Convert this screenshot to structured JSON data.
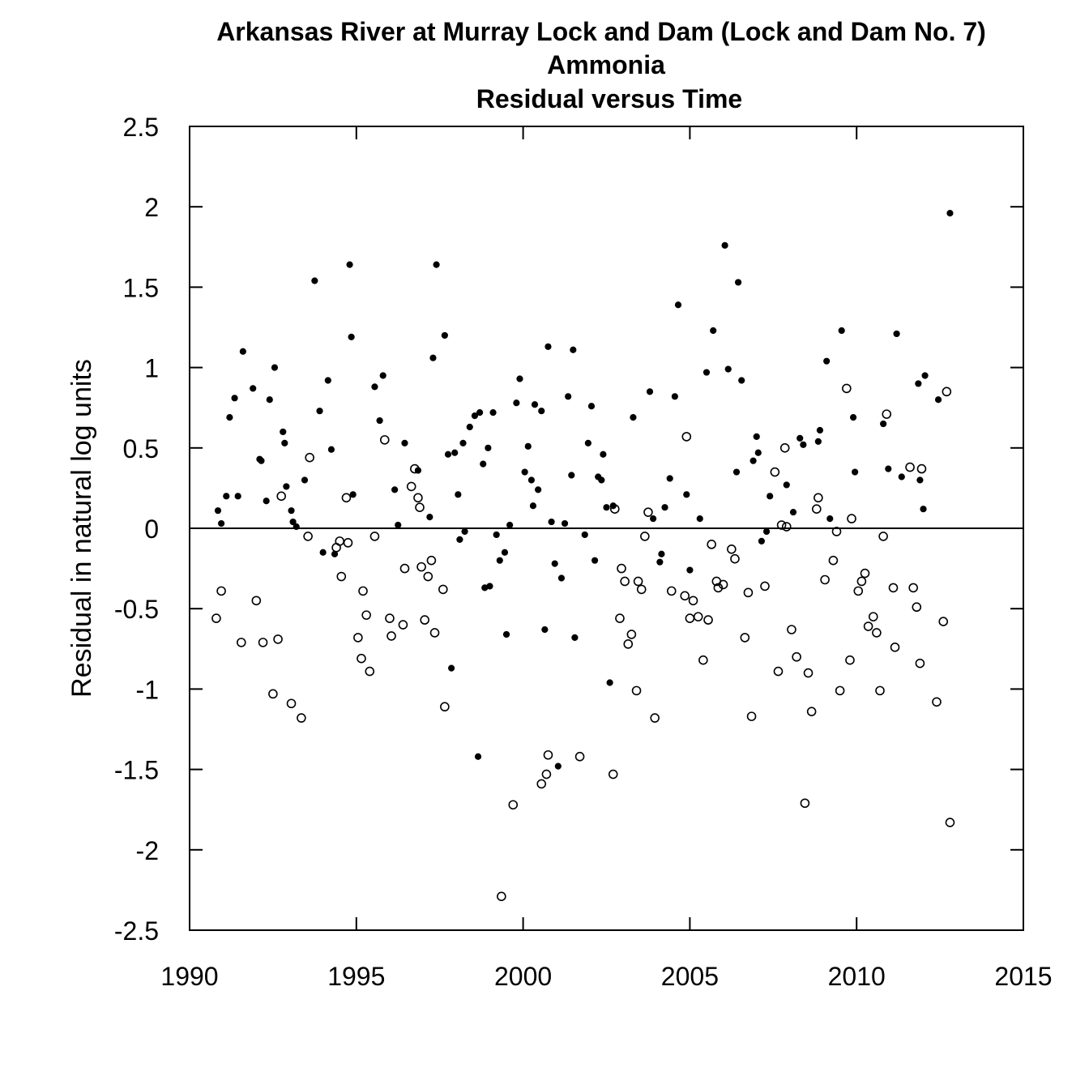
{
  "chart_data": {
    "type": "scatter",
    "title": [
      "Arkansas River at Murray Lock and Dam (Lock and Dam No. 7)",
      "Ammonia",
      "Residual versus Time"
    ],
    "xlabel": "",
    "ylabel": "Residual in natural log units",
    "xlim": [
      1990,
      2015
    ],
    "ylim": [
      -2.5,
      2.5
    ],
    "x_ticks": [
      "1990",
      "1995",
      "2000",
      "2005",
      "2010",
      "2015"
    ],
    "y_ticks": [
      "2.5",
      "2",
      "1.5",
      "1",
      "0.5",
      "0",
      "-0.5",
      "-1",
      "-1.5",
      "-2",
      "-2.5"
    ],
    "reference_line": 0,
    "series": [
      {
        "marker": "filled-circle",
        "points": [
          [
            1990.85,
            0.11
          ],
          [
            1990.95,
            0.03
          ],
          [
            1991.1,
            0.2
          ],
          [
            1991.2,
            0.69
          ],
          [
            1991.35,
            0.81
          ],
          [
            1991.45,
            0.2
          ],
          [
            1991.6,
            1.1
          ],
          [
            1991.9,
            0.87
          ],
          [
            1992.1,
            0.43
          ],
          [
            1992.15,
            0.42
          ],
          [
            1992.3,
            0.17
          ],
          [
            1992.4,
            0.8
          ],
          [
            1992.55,
            1.0
          ],
          [
            1992.8,
            0.6
          ],
          [
            1992.85,
            0.53
          ],
          [
            1992.9,
            0.26
          ],
          [
            1993.05,
            0.11
          ],
          [
            1993.1,
            0.04
          ],
          [
            1993.2,
            0.01
          ],
          [
            1993.45,
            0.3
          ],
          [
            1993.75,
            1.54
          ],
          [
            1993.9,
            0.73
          ],
          [
            1994.0,
            -0.15
          ],
          [
            1994.15,
            0.92
          ],
          [
            1994.25,
            0.49
          ],
          [
            1994.35,
            -0.16
          ],
          [
            1994.8,
            1.64
          ],
          [
            1994.85,
            1.19
          ],
          [
            1994.9,
            0.21
          ],
          [
            1995.55,
            0.88
          ],
          [
            1995.7,
            0.67
          ],
          [
            1995.8,
            0.95
          ],
          [
            1996.15,
            0.24
          ],
          [
            1996.25,
            0.02
          ],
          [
            1996.45,
            0.53
          ],
          [
            1996.85,
            0.36
          ],
          [
            1997.2,
            0.07
          ],
          [
            1997.3,
            1.06
          ],
          [
            1997.4,
            1.64
          ],
          [
            1997.65,
            1.2
          ],
          [
            1997.75,
            0.46
          ],
          [
            1997.85,
            -0.87
          ],
          [
            1997.95,
            0.47
          ],
          [
            1998.05,
            0.21
          ],
          [
            1998.1,
            -0.07
          ],
          [
            1998.2,
            0.53
          ],
          [
            1998.25,
            -0.02
          ],
          [
            1998.4,
            0.63
          ],
          [
            1998.55,
            0.7
          ],
          [
            1998.65,
            -1.42
          ],
          [
            1998.7,
            0.72
          ],
          [
            1998.8,
            0.4
          ],
          [
            1998.85,
            -0.37
          ],
          [
            1998.95,
            0.5
          ],
          [
            1999.0,
            -0.36
          ],
          [
            1999.1,
            0.72
          ],
          [
            1999.2,
            -0.04
          ],
          [
            1999.3,
            -0.2
          ],
          [
            1999.45,
            -0.15
          ],
          [
            1999.5,
            -0.66
          ],
          [
            1999.6,
            0.02
          ],
          [
            1999.8,
            0.78
          ],
          [
            1999.9,
            0.93
          ],
          [
            2000.05,
            0.35
          ],
          [
            2000.15,
            0.51
          ],
          [
            2000.25,
            0.3
          ],
          [
            2000.3,
            0.14
          ],
          [
            2000.35,
            0.77
          ],
          [
            2000.45,
            0.24
          ],
          [
            2000.55,
            0.73
          ],
          [
            2000.65,
            -0.63
          ],
          [
            2000.75,
            1.13
          ],
          [
            2000.85,
            0.04
          ],
          [
            2000.95,
            -0.22
          ],
          [
            2001.05,
            -1.48
          ],
          [
            2001.15,
            -0.31
          ],
          [
            2001.25,
            0.03
          ],
          [
            2001.35,
            0.82
          ],
          [
            2001.45,
            0.33
          ],
          [
            2001.5,
            1.11
          ],
          [
            2001.55,
            -0.68
          ],
          [
            2001.85,
            -0.04
          ],
          [
            2001.95,
            0.53
          ],
          [
            2002.05,
            0.76
          ],
          [
            2002.15,
            -0.2
          ],
          [
            2002.25,
            0.32
          ],
          [
            2002.35,
            0.3
          ],
          [
            2002.4,
            0.46
          ],
          [
            2002.5,
            0.13
          ],
          [
            2002.6,
            -0.96
          ],
          [
            2002.7,
            0.14
          ],
          [
            2003.3,
            0.69
          ],
          [
            2003.8,
            0.85
          ],
          [
            2003.9,
            0.06
          ],
          [
            2004.1,
            -0.21
          ],
          [
            2004.15,
            -0.16
          ],
          [
            2004.25,
            0.13
          ],
          [
            2004.4,
            0.31
          ],
          [
            2004.55,
            0.82
          ],
          [
            2004.65,
            1.39
          ],
          [
            2004.9,
            0.21
          ],
          [
            2005.0,
            -0.26
          ],
          [
            2005.3,
            0.06
          ],
          [
            2005.5,
            0.97
          ],
          [
            2005.7,
            1.23
          ],
          [
            2006.05,
            1.76
          ],
          [
            2006.15,
            0.99
          ],
          [
            2006.4,
            0.35
          ],
          [
            2006.45,
            1.53
          ],
          [
            2006.55,
            0.92
          ],
          [
            2006.9,
            0.42
          ],
          [
            2007.0,
            0.57
          ],
          [
            2007.05,
            0.47
          ],
          [
            2007.15,
            -0.08
          ],
          [
            2007.3,
            -0.02
          ],
          [
            2007.4,
            0.2
          ],
          [
            2007.9,
            0.27
          ],
          [
            2008.1,
            0.1
          ],
          [
            2008.3,
            0.56
          ],
          [
            2008.4,
            0.52
          ],
          [
            2008.85,
            0.54
          ],
          [
            2008.9,
            0.61
          ],
          [
            2009.1,
            1.04
          ],
          [
            2009.2,
            0.06
          ],
          [
            2009.55,
            1.23
          ],
          [
            2009.9,
            0.69
          ],
          [
            2009.95,
            0.35
          ],
          [
            2010.8,
            0.65
          ],
          [
            2010.95,
            0.37
          ],
          [
            2011.2,
            1.21
          ],
          [
            2011.35,
            0.32
          ],
          [
            2011.85,
            0.9
          ],
          [
            2011.9,
            0.3
          ],
          [
            2012.0,
            0.12
          ],
          [
            2012.05,
            0.95
          ],
          [
            2012.45,
            0.8
          ],
          [
            2012.8,
            1.96
          ]
        ]
      },
      {
        "marker": "open-circle",
        "points": [
          [
            1990.8,
            -0.56
          ],
          [
            1990.95,
            -0.39
          ],
          [
            1991.55,
            -0.71
          ],
          [
            1992.0,
            -0.45
          ],
          [
            1992.2,
            -0.71
          ],
          [
            1992.5,
            -1.03
          ],
          [
            1992.65,
            -0.69
          ],
          [
            1992.75,
            0.2
          ],
          [
            1993.05,
            -1.09
          ],
          [
            1993.35,
            -1.18
          ],
          [
            1993.55,
            -0.05
          ],
          [
            1993.6,
            0.44
          ],
          [
            1994.4,
            -0.12
          ],
          [
            1994.5,
            -0.08
          ],
          [
            1994.55,
            -0.3
          ],
          [
            1994.7,
            0.19
          ],
          [
            1994.75,
            -0.09
          ],
          [
            1995.05,
            -0.68
          ],
          [
            1995.15,
            -0.81
          ],
          [
            1995.2,
            -0.39
          ],
          [
            1995.3,
            -0.54
          ],
          [
            1995.4,
            -0.89
          ],
          [
            1995.55,
            -0.05
          ],
          [
            1995.85,
            0.55
          ],
          [
            1996.0,
            -0.56
          ],
          [
            1996.05,
            -0.67
          ],
          [
            1996.4,
            -0.6
          ],
          [
            1996.45,
            -0.25
          ],
          [
            1996.65,
            0.26
          ],
          [
            1996.75,
            0.37
          ],
          [
            1996.85,
            0.19
          ],
          [
            1996.9,
            0.13
          ],
          [
            1996.95,
            -0.24
          ],
          [
            1997.05,
            -0.57
          ],
          [
            1997.15,
            -0.3
          ],
          [
            1997.25,
            -0.2
          ],
          [
            1997.35,
            -0.65
          ],
          [
            1997.6,
            -0.38
          ],
          [
            1997.65,
            -1.11
          ],
          [
            1999.35,
            -2.29
          ],
          [
            1999.7,
            -1.72
          ],
          [
            2000.55,
            -1.59
          ],
          [
            2000.7,
            -1.53
          ],
          [
            2000.75,
            -1.41
          ],
          [
            2001.7,
            -1.42
          ],
          [
            2002.7,
            -1.53
          ],
          [
            2002.75,
            0.12
          ],
          [
            2002.9,
            -0.56
          ],
          [
            2002.95,
            -0.25
          ],
          [
            2003.05,
            -0.33
          ],
          [
            2003.15,
            -0.72
          ],
          [
            2003.25,
            -0.66
          ],
          [
            2003.4,
            -1.01
          ],
          [
            2003.45,
            -0.33
          ],
          [
            2003.55,
            -0.38
          ],
          [
            2003.65,
            -0.05
          ],
          [
            2003.75,
            0.1
          ],
          [
            2003.95,
            -1.18
          ],
          [
            2004.45,
            -0.39
          ],
          [
            2004.85,
            -0.42
          ],
          [
            2004.9,
            0.57
          ],
          [
            2005.0,
            -0.56
          ],
          [
            2005.1,
            -0.45
          ],
          [
            2005.25,
            -0.55
          ],
          [
            2005.4,
            -0.82
          ],
          [
            2005.55,
            -0.57
          ],
          [
            2005.65,
            -0.1
          ],
          [
            2005.8,
            -0.33
          ],
          [
            2005.85,
            -0.37
          ],
          [
            2006.0,
            -0.35
          ],
          [
            2006.25,
            -0.13
          ],
          [
            2006.35,
            -0.19
          ],
          [
            2006.65,
            -0.68
          ],
          [
            2006.75,
            -0.4
          ],
          [
            2006.85,
            -1.17
          ],
          [
            2007.25,
            -0.36
          ],
          [
            2007.55,
            0.35
          ],
          [
            2007.65,
            -0.89
          ],
          [
            2007.75,
            0.02
          ],
          [
            2007.85,
            0.5
          ],
          [
            2007.9,
            0.01
          ],
          [
            2008.05,
            -0.63
          ],
          [
            2008.2,
            -0.8
          ],
          [
            2008.45,
            -1.71
          ],
          [
            2008.55,
            -0.9
          ],
          [
            2008.65,
            -1.14
          ],
          [
            2008.8,
            0.12
          ],
          [
            2008.85,
            0.19
          ],
          [
            2009.05,
            -0.32
          ],
          [
            2009.3,
            -0.2
          ],
          [
            2009.4,
            -0.02
          ],
          [
            2009.5,
            -1.01
          ],
          [
            2009.7,
            0.87
          ],
          [
            2009.8,
            -0.82
          ],
          [
            2009.85,
            0.06
          ],
          [
            2010.05,
            -0.39
          ],
          [
            2010.15,
            -0.33
          ],
          [
            2010.25,
            -0.28
          ],
          [
            2010.35,
            -0.61
          ],
          [
            2010.5,
            -0.55
          ],
          [
            2010.6,
            -0.65
          ],
          [
            2010.7,
            -1.01
          ],
          [
            2010.8,
            -0.05
          ],
          [
            2010.9,
            0.71
          ],
          [
            2011.1,
            -0.37
          ],
          [
            2011.15,
            -0.74
          ],
          [
            2011.6,
            0.38
          ],
          [
            2011.7,
            -0.37
          ],
          [
            2011.8,
            -0.49
          ],
          [
            2011.9,
            -0.84
          ],
          [
            2011.95,
            0.37
          ],
          [
            2012.4,
            -1.08
          ],
          [
            2012.6,
            -0.58
          ],
          [
            2012.7,
            0.85
          ],
          [
            2012.8,
            -1.83
          ]
        ]
      }
    ]
  }
}
